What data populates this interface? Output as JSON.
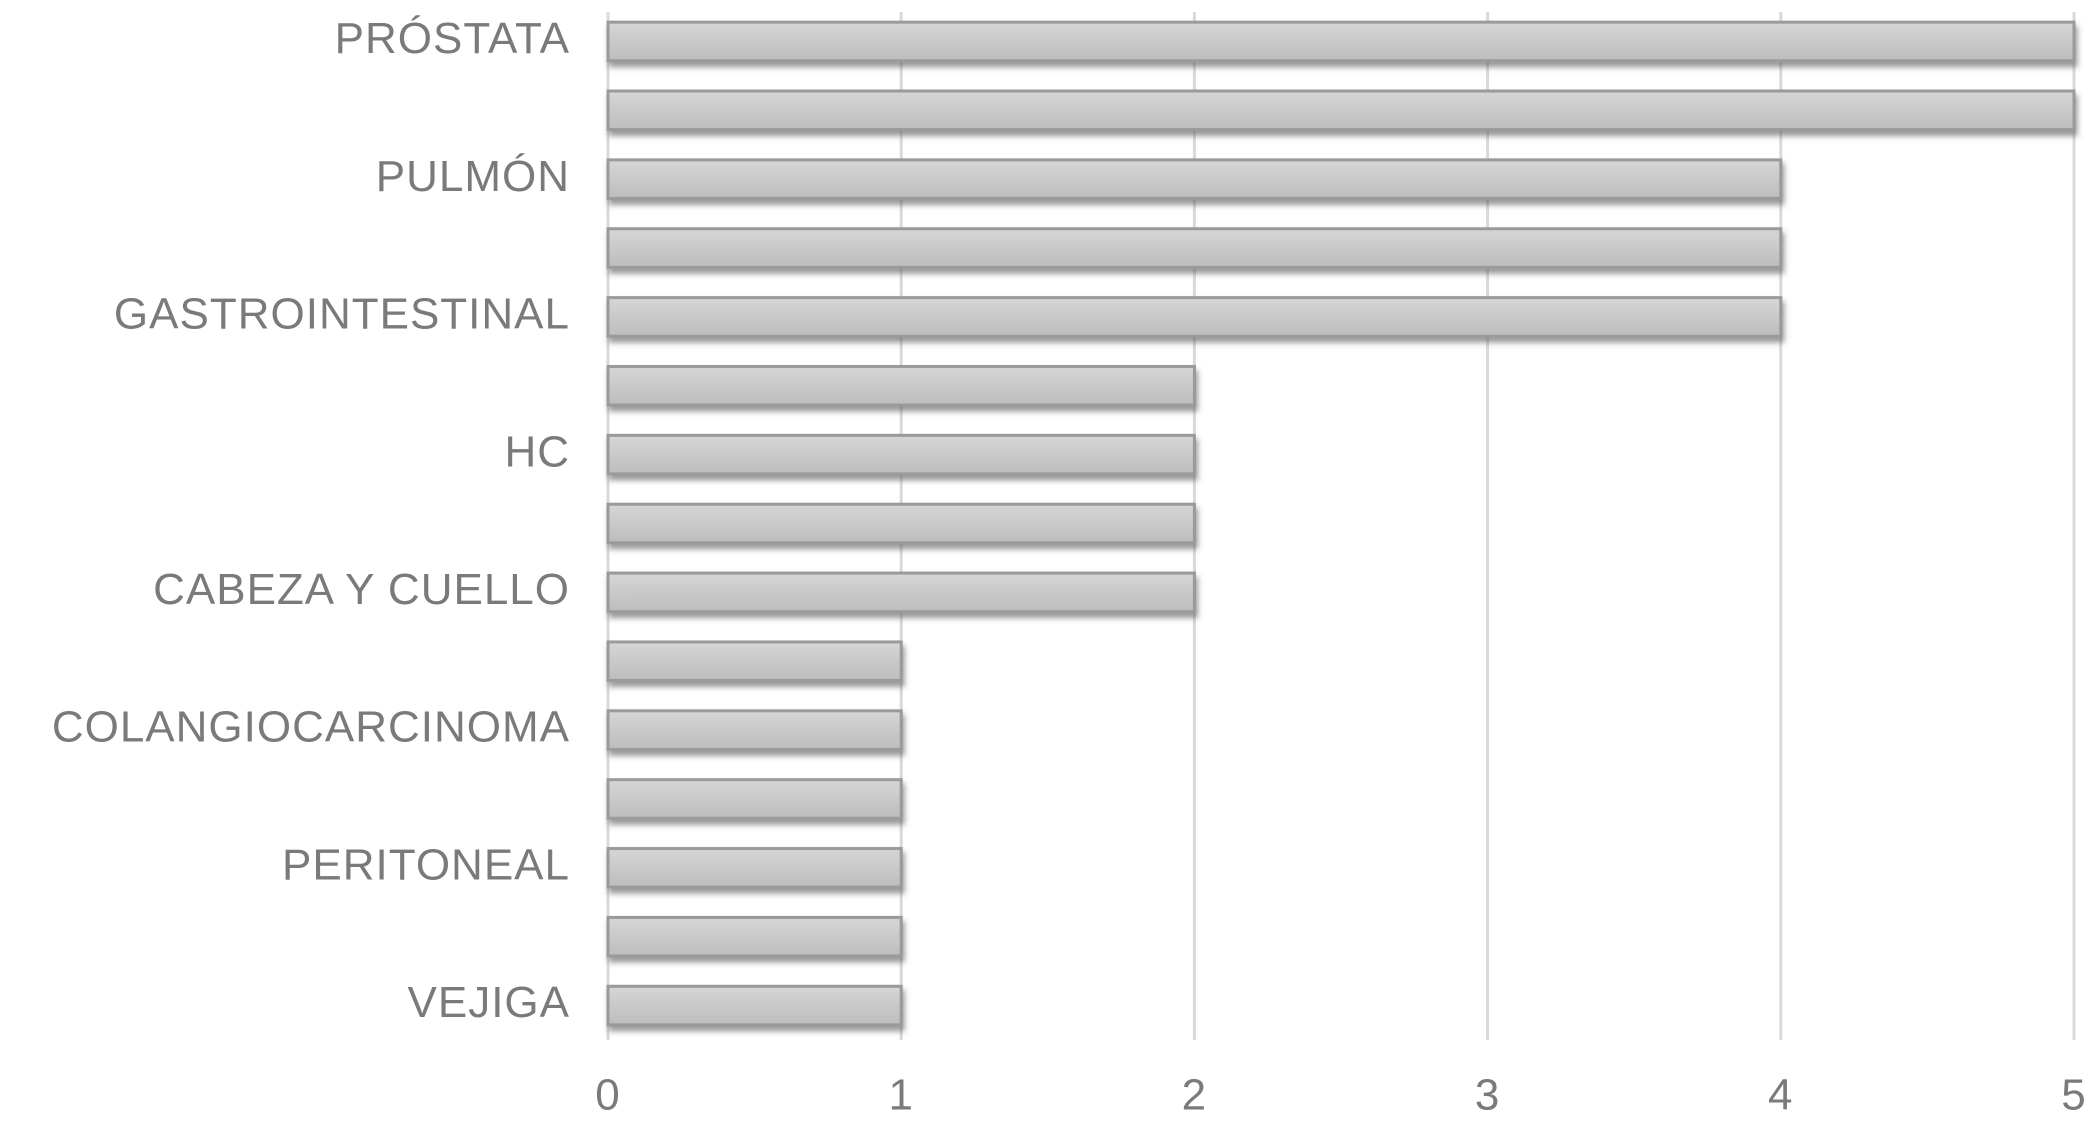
{
  "chart_data": {
    "type": "hbar",
    "categories": [
      "PRÓSTATA",
      null,
      "PULMÓN",
      null,
      "GASTROINTESTINAL",
      null,
      "HC",
      null,
      "CABEZA Y CUELLO",
      null,
      "COLANGIOCARCINOMA",
      null,
      "PERITONEAL",
      null,
      "VEJIGA"
    ],
    "values": [
      5,
      5,
      4,
      4,
      4,
      2,
      2,
      2,
      2,
      1,
      1,
      1,
      1,
      1,
      1
    ],
    "color": "#cccccc",
    "xlim": [
      0,
      5
    ],
    "xticks": [
      0,
      1,
      2,
      3,
      4,
      5
    ],
    "grid": true
  }
}
